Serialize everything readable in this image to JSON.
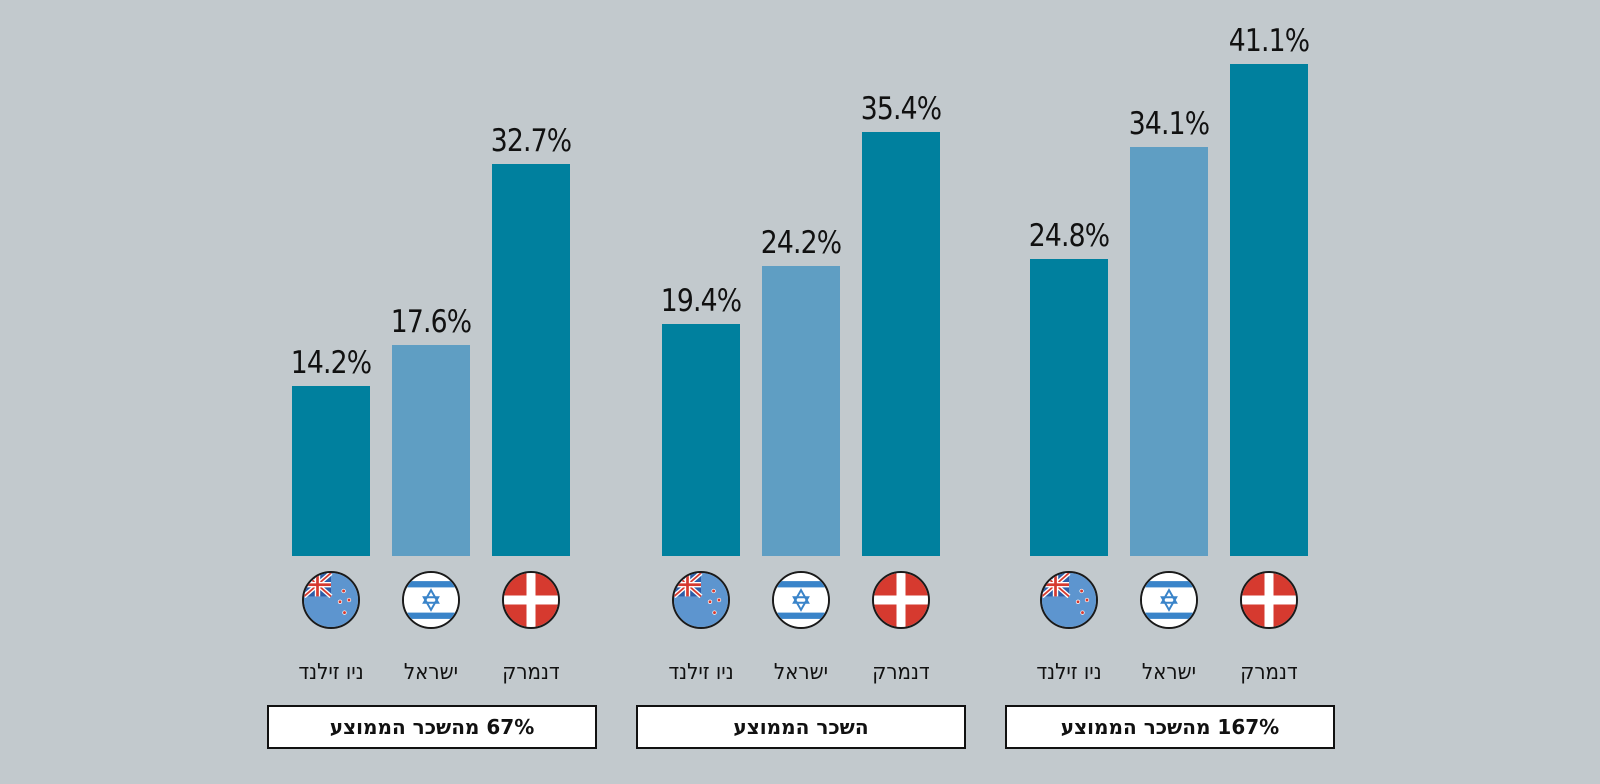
{
  "chart_data": {
    "type": "bar",
    "title": "",
    "xlabel": "",
    "ylabel": "",
    "ylim": [
      0,
      45
    ],
    "grid": false,
    "legend": "none",
    "colors": {
      "denmark": "#00809e",
      "israel": "#5f9ec3",
      "new_zealand": "#00809e"
    },
    "groups": [
      {
        "label": "67% מהשכר הממוצע",
        "bars": [
          {
            "country": "ניו זילנד",
            "flag": "new-zealand",
            "value": 14.2,
            "display": "14.2%"
          },
          {
            "country": "ישראל",
            "flag": "israel",
            "value": 17.6,
            "display": "17.6%"
          },
          {
            "country": "דנמרק",
            "flag": "denmark",
            "value": 32.7,
            "display": "32.7%"
          }
        ]
      },
      {
        "label": "השכר הממוצע",
        "bars": [
          {
            "country": "ניו זילנד",
            "flag": "new-zealand",
            "value": 19.4,
            "display": "19.4%"
          },
          {
            "country": "ישראל",
            "flag": "israel",
            "value": 24.2,
            "display": "24.2%"
          },
          {
            "country": "דנמרק",
            "flag": "denmark",
            "value": 35.4,
            "display": "35.4%"
          }
        ]
      },
      {
        "label": "167% מהשכר הממוצע",
        "bars": [
          {
            "country": "ניו זילנד",
            "flag": "new-zealand",
            "value": 24.8,
            "display": "24.8%"
          },
          {
            "country": "ישראל",
            "flag": "israel",
            "value": 34.1,
            "display": "34.1%"
          },
          {
            "country": "דנמרק",
            "flag": "denmark",
            "value": 41.1,
            "display": "41.1%"
          }
        ]
      }
    ]
  }
}
